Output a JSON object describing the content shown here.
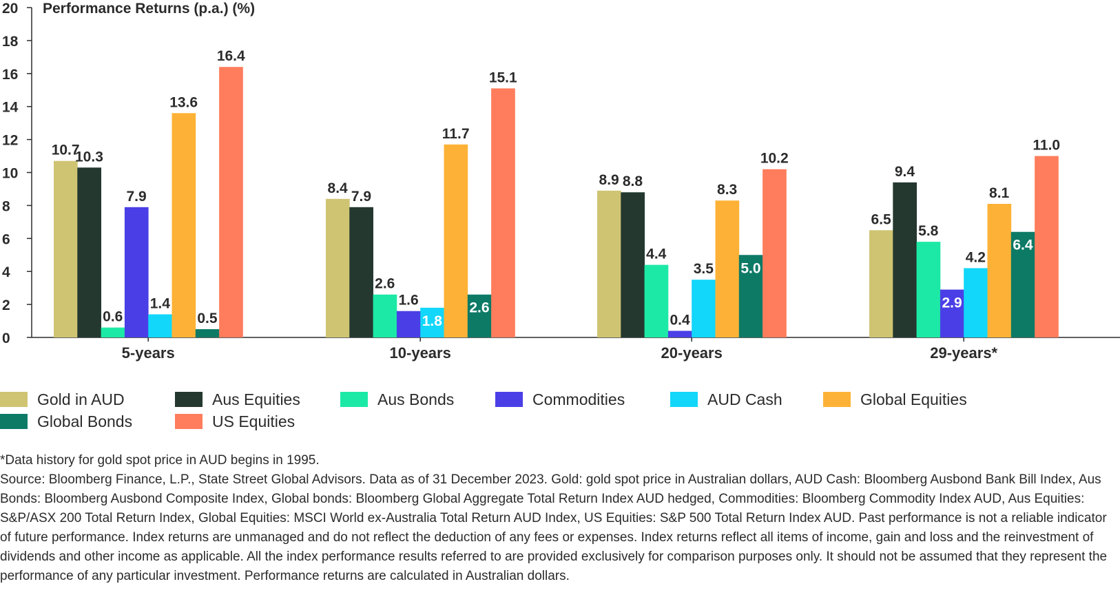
{
  "chart_data": {
    "type": "bar",
    "title": "Performance Returns (p.a.) (%)",
    "categories": [
      "5-years",
      "10-years",
      "20-years",
      "29-years*"
    ],
    "ylim": [
      0,
      20
    ],
    "yticks": [
      "0",
      "2",
      "4",
      "6",
      "8",
      "10",
      "12",
      "14",
      "16",
      "18",
      "20"
    ],
    "grid": false,
    "legend_position": "bottom",
    "series": [
      {
        "name": "Gold in AUD",
        "color": "#cfc472",
        "values": [
          10.7,
          8.4,
          8.9,
          6.5
        ],
        "labels": [
          "10.7",
          "8.4",
          "8.9",
          "6.5"
        ]
      },
      {
        "name": "Aus Equities",
        "color": "#24382f",
        "values": [
          10.3,
          7.9,
          8.8,
          9.4
        ],
        "labels": [
          "10.3",
          "7.9",
          "8.8",
          "9.4"
        ]
      },
      {
        "name": "Aus Bonds",
        "color": "#1de9a6",
        "values": [
          0.6,
          2.6,
          4.4,
          5.8
        ],
        "labels": [
          "0.6",
          "2.6",
          "4.4",
          "5.8"
        ]
      },
      {
        "name": "Commodities",
        "color": "#4a3fe6",
        "values": [
          7.9,
          1.6,
          0.4,
          2.9
        ],
        "labels": [
          "7.9",
          "1.6",
          "0.4",
          "2.9"
        ]
      },
      {
        "name": "AUD Cash",
        "color": "#12d6fa",
        "values": [
          1.4,
          1.8,
          3.5,
          4.2
        ],
        "labels": [
          "1.4",
          "1.8",
          "3.5",
          "4.2"
        ]
      },
      {
        "name": "Global Equities",
        "color": "#fdb237",
        "values": [
          13.6,
          11.7,
          8.3,
          8.1
        ],
        "labels": [
          "13.6",
          "11.7",
          "8.3",
          "8.1"
        ]
      },
      {
        "name": "Global Bonds",
        "color": "#0d7a66",
        "values": [
          0.5,
          2.6,
          5.0,
          6.4
        ],
        "labels": [
          "0.5",
          "2.6",
          "5.0",
          "6.4"
        ]
      },
      {
        "name": "US Equities",
        "color": "#ff7d5c",
        "values": [
          16.4,
          15.1,
          10.2,
          11.0
        ],
        "labels": [
          "16.4",
          "15.1",
          "10.2",
          "11.0"
        ]
      }
    ]
  },
  "legend": {
    "items": [
      {
        "label": "Gold in AUD",
        "color": "#cfc472"
      },
      {
        "label": "Aus Equities",
        "color": "#24382f"
      },
      {
        "label": "Aus Bonds",
        "color": "#1de9a6"
      },
      {
        "label": "Commodities",
        "color": "#4a3fe6"
      },
      {
        "label": "AUD Cash",
        "color": "#12d6fa"
      },
      {
        "label": "Global Equities",
        "color": "#fdb237"
      },
      {
        "label": "Global Bonds",
        "color": "#0d7a66"
      },
      {
        "label": "US Equities",
        "color": "#ff7d5c"
      }
    ]
  },
  "notes": {
    "footnote": "*Data history for gold spot price in AUD begins in 1995.",
    "source": "Source: Bloomberg Finance, L.P., State Street Global Advisors. Data as of 31 December 2023. Gold: gold spot price in Australian dollars, AUD Cash: Bloomberg Ausbond Bank Bill Index, Aus Bonds: Bloomberg Ausbond Composite Index, Global bonds: Bloomberg Global Aggregate Total Return Index AUD hedged, Commodities: Bloomberg Commodity Index AUD, Aus Equities: S&P/ASX 200 Total Return Index, Global Equities: MSCI World ex-Australia Total Return AUD Index, US Equities: S&P 500 Total Return Index AUD. Past performance is not a reliable indicator of future performance. Index returns are unmanaged and do not reflect the deduction of any fees or expenses. Index returns reflect all items of income, gain and loss and the reinvestment of dividends and other income as applicable. All the index performance results referred to are provided exclusively for comparison purposes only. It should not be assumed that they represent the performance of any particular investment. Performance returns are calculated in Australian dollars."
  }
}
